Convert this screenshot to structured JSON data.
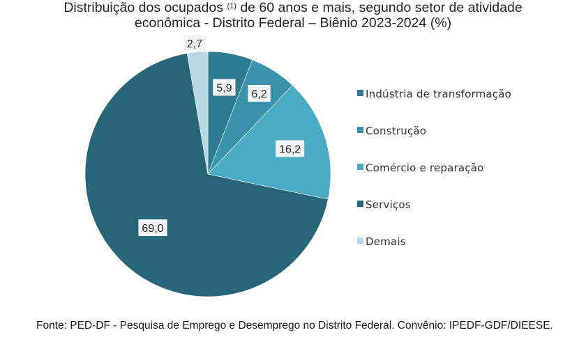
{
  "title": {
    "line1_before": "Distribuição dos ocupados ",
    "footnote_mark": "(1)",
    "line1_after": " de 60 anos e mais, segundo setor de atividade",
    "line2": "econômica - Distrito Federal – Biênio 2023-2024 (%)"
  },
  "source": "Fonte: PED-DF - Pesquisa de Emprego e Desemprego no Distrito Federal. Convênio: IPEDF-GDF/DIEESE.",
  "chart_data": {
    "type": "pie",
    "title": "Distribuição dos ocupados (1) de 60 anos e mais, segundo setor de atividade econômica - Distrito Federal – Biênio 2023-2024 (%)",
    "start_angle_deg": 0,
    "direction": "clockwise",
    "legend_position": "right",
    "slices": [
      {
        "label": "Indústria de transformação",
        "value": 5.9,
        "value_label": "5,9",
        "color": "#2e7a91"
      },
      {
        "label": "Construção",
        "value": 6.2,
        "value_label": "6,2",
        "color": "#3b93ab"
      },
      {
        "label": "Comércio e reparação",
        "value": 16.2,
        "value_label": "16,2",
        "color": "#4aabc4"
      },
      {
        "label": "Serviços",
        "value": 69.0,
        "value_label": "69,0",
        "color": "#276579"
      },
      {
        "label": "Demais",
        "value": 2.7,
        "value_label": "2,7",
        "color": "#b7d7e3"
      }
    ]
  }
}
